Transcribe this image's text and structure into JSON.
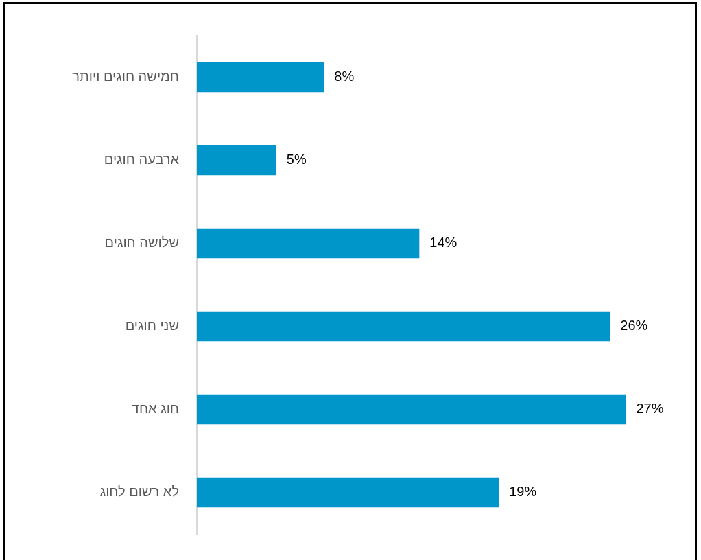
{
  "chart_data": {
    "type": "bar",
    "orientation": "horizontal",
    "categories": [
      "חמישה חוגים ויותר",
      "ארבעה חוגים",
      "שלושה חוגים",
      "שני חוגים",
      "חוג אחד",
      "לא רשום לחוג"
    ],
    "values": [
      8,
      5,
      14,
      26,
      27,
      19
    ],
    "value_labels": [
      "8%",
      "5%",
      "14%",
      "26%",
      "27%",
      "19%"
    ],
    "color": "#0096c9",
    "grid": false,
    "legend": false
  }
}
